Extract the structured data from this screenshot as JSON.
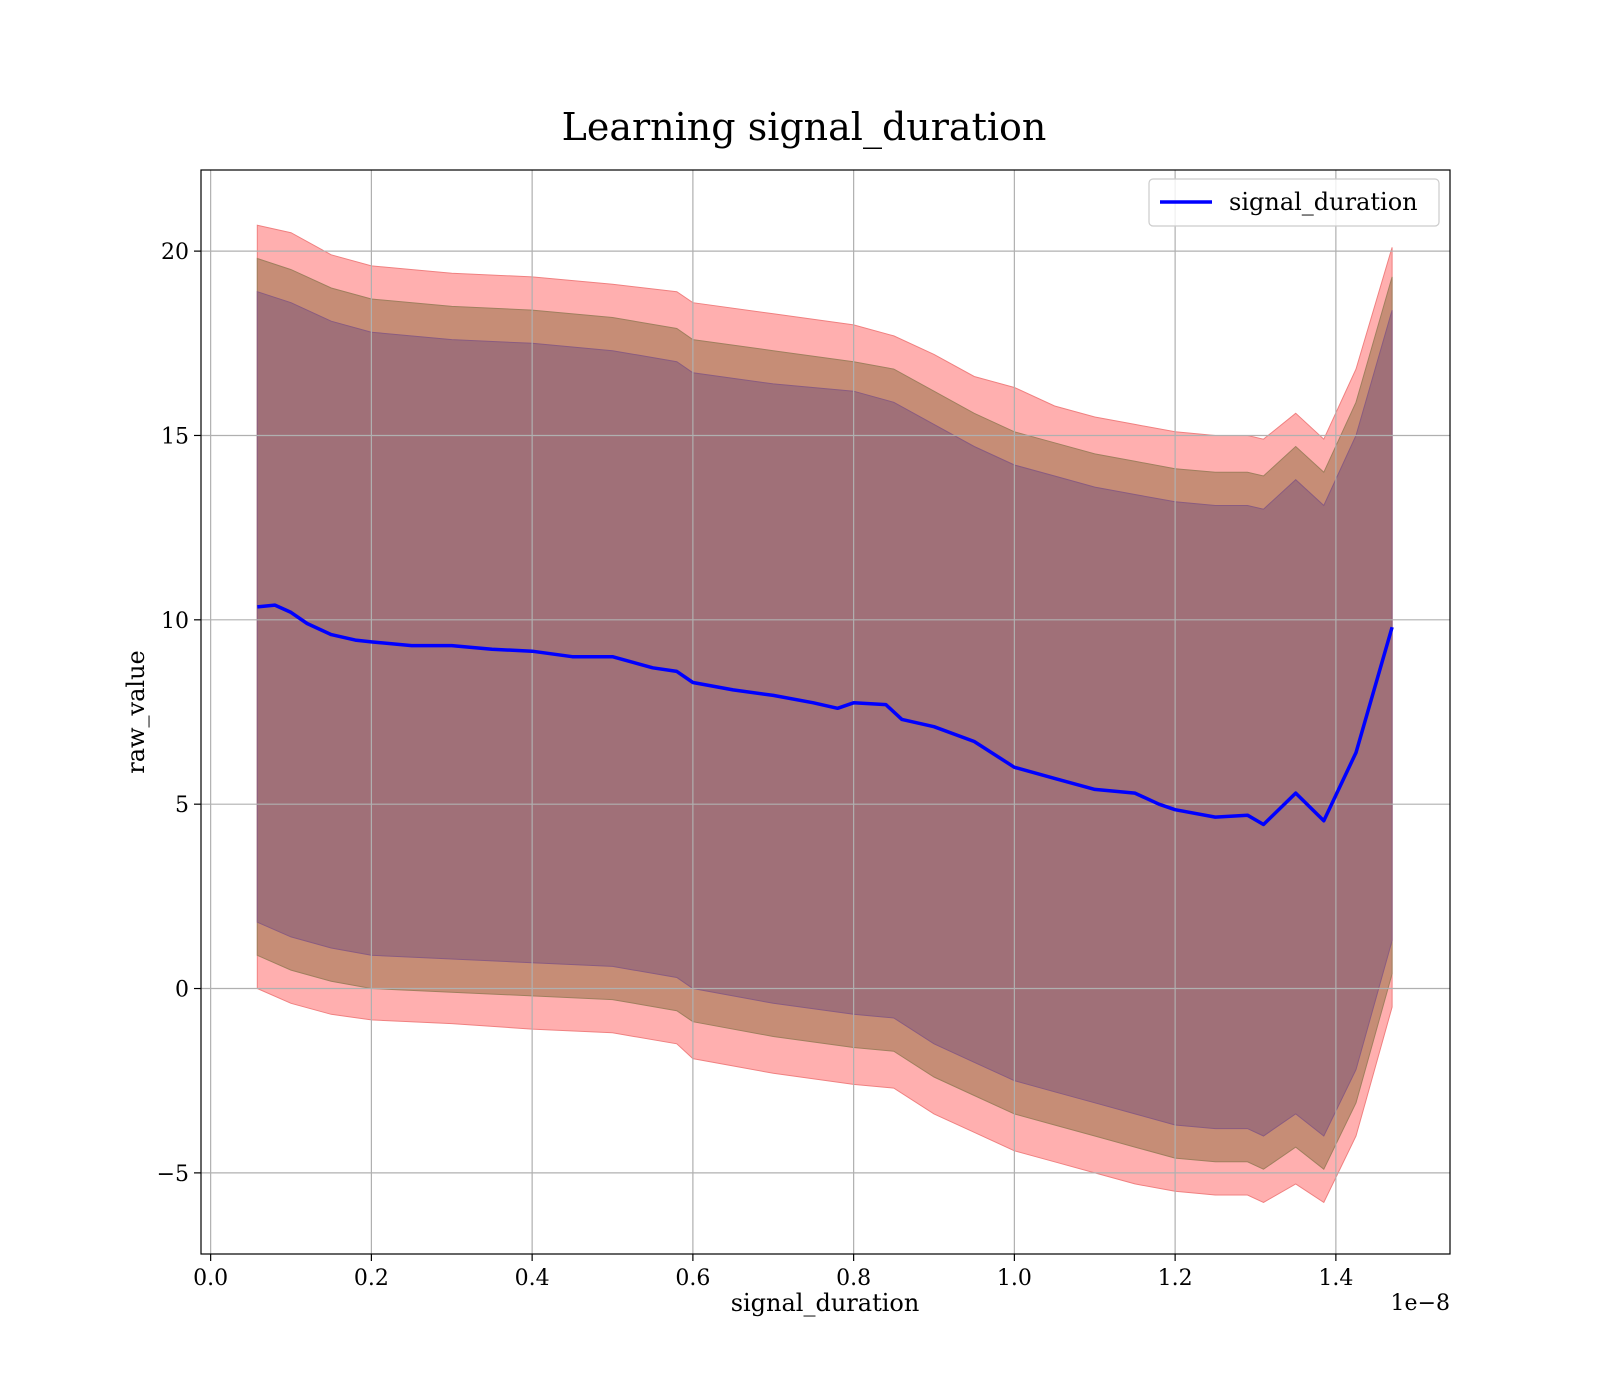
{
  "chart_data": {
    "type": "line",
    "title": "Learning signal_duration",
    "xlabel": "signal_duration",
    "ylabel": "raw_value",
    "x_offset_label": "1e−8",
    "xlim": [
      -0.012,
      1.542
    ],
    "ylim": [
      -7.2,
      22.2
    ],
    "x_ticks": [
      0.0,
      0.2,
      0.4,
      0.6,
      0.8,
      1.0,
      1.2,
      1.4
    ],
    "x_tick_labels": [
      "0.0",
      "0.2",
      "0.4",
      "0.6",
      "0.8",
      "1.0",
      "1.2",
      "1.4"
    ],
    "y_ticks": [
      -5,
      0,
      5,
      10,
      15,
      20
    ],
    "y_tick_labels": [
      "−5",
      "0",
      "5",
      "10",
      "15",
      "20"
    ],
    "grid": true,
    "legend_position": "top-right",
    "colors": {
      "line": "#0000ff",
      "band_outer": "#ff9999",
      "band_middle": "#c08a70",
      "band_inner": "#a07078"
    },
    "series": [
      {
        "name": "signal_duration",
        "x": [
          0.058,
          0.08,
          0.1,
          0.12,
          0.15,
          0.18,
          0.2,
          0.25,
          0.3,
          0.35,
          0.4,
          0.45,
          0.5,
          0.55,
          0.58,
          0.6,
          0.65,
          0.7,
          0.75,
          0.78,
          0.8,
          0.84,
          0.86,
          0.9,
          0.95,
          1.0,
          1.05,
          1.1,
          1.15,
          1.18,
          1.2,
          1.25,
          1.29,
          1.31,
          1.35,
          1.385,
          1.425,
          1.47
        ],
        "y": [
          10.35,
          10.4,
          10.2,
          9.9,
          9.6,
          9.45,
          9.4,
          9.3,
          9.3,
          9.2,
          9.15,
          9.0,
          9.0,
          8.7,
          8.6,
          8.3,
          8.1,
          7.95,
          7.75,
          7.6,
          7.75,
          7.7,
          7.3,
          7.1,
          6.7,
          6.0,
          5.7,
          5.4,
          5.3,
          5.0,
          4.85,
          4.65,
          4.7,
          4.45,
          5.3,
          4.55,
          6.4,
          9.8
        ]
      }
    ],
    "bands": [
      {
        "role": "outer",
        "x": [
          0.058,
          0.1,
          0.15,
          0.2,
          0.3,
          0.4,
          0.5,
          0.58,
          0.6,
          0.7,
          0.8,
          0.85,
          0.9,
          0.95,
          1.0,
          1.05,
          1.1,
          1.15,
          1.2,
          1.25,
          1.29,
          1.31,
          1.35,
          1.385,
          1.425,
          1.47
        ],
        "upper": [
          20.7,
          20.5,
          19.9,
          19.6,
          19.4,
          19.3,
          19.1,
          18.9,
          18.6,
          18.3,
          18.0,
          17.7,
          17.2,
          16.6,
          16.3,
          15.8,
          15.5,
          15.3,
          15.1,
          15.0,
          15.0,
          14.9,
          15.6,
          14.9,
          16.8,
          20.1
        ],
        "lower": [
          0.0,
          -0.4,
          -0.7,
          -0.85,
          -0.95,
          -1.1,
          -1.2,
          -1.5,
          -1.9,
          -2.3,
          -2.6,
          -2.7,
          -3.4,
          -3.9,
          -4.4,
          -4.7,
          -5.0,
          -5.3,
          -5.5,
          -5.6,
          -5.6,
          -5.8,
          -5.3,
          -5.8,
          -4.0,
          -0.5
        ]
      },
      {
        "role": "middle",
        "x": [
          0.058,
          0.1,
          0.15,
          0.2,
          0.3,
          0.4,
          0.5,
          0.58,
          0.6,
          0.7,
          0.8,
          0.85,
          0.9,
          0.95,
          1.0,
          1.05,
          1.1,
          1.15,
          1.2,
          1.25,
          1.29,
          1.31,
          1.35,
          1.385,
          1.425,
          1.47
        ],
        "upper": [
          19.8,
          19.5,
          19.0,
          18.7,
          18.5,
          18.4,
          18.2,
          17.9,
          17.6,
          17.3,
          17.0,
          16.8,
          16.2,
          15.6,
          15.1,
          14.8,
          14.5,
          14.3,
          14.1,
          14.0,
          14.0,
          13.9,
          14.7,
          14.0,
          15.9,
          19.3
        ],
        "lower": [
          0.9,
          0.5,
          0.2,
          0.0,
          -0.1,
          -0.2,
          -0.3,
          -0.6,
          -0.9,
          -1.3,
          -1.6,
          -1.7,
          -2.4,
          -2.9,
          -3.4,
          -3.7,
          -4.0,
          -4.3,
          -4.6,
          -4.7,
          -4.7,
          -4.9,
          -4.3,
          -4.9,
          -3.1,
          0.4
        ]
      },
      {
        "role": "inner",
        "x": [
          0.058,
          0.1,
          0.15,
          0.2,
          0.3,
          0.4,
          0.5,
          0.58,
          0.6,
          0.7,
          0.8,
          0.85,
          0.9,
          0.95,
          1.0,
          1.05,
          1.1,
          1.15,
          1.2,
          1.25,
          1.29,
          1.31,
          1.35,
          1.385,
          1.425,
          1.47
        ],
        "upper": [
          18.9,
          18.6,
          18.1,
          17.8,
          17.6,
          17.5,
          17.3,
          17.0,
          16.7,
          16.4,
          16.2,
          15.9,
          15.3,
          14.7,
          14.2,
          13.9,
          13.6,
          13.4,
          13.2,
          13.1,
          13.1,
          13.0,
          13.8,
          13.1,
          15.0,
          18.4
        ],
        "lower": [
          1.8,
          1.4,
          1.1,
          0.9,
          0.8,
          0.7,
          0.6,
          0.3,
          0.0,
          -0.4,
          -0.7,
          -0.8,
          -1.5,
          -2.0,
          -2.5,
          -2.8,
          -3.1,
          -3.4,
          -3.7,
          -3.8,
          -3.8,
          -4.0,
          -3.4,
          -4.0,
          -2.2,
          1.3
        ]
      }
    ]
  }
}
